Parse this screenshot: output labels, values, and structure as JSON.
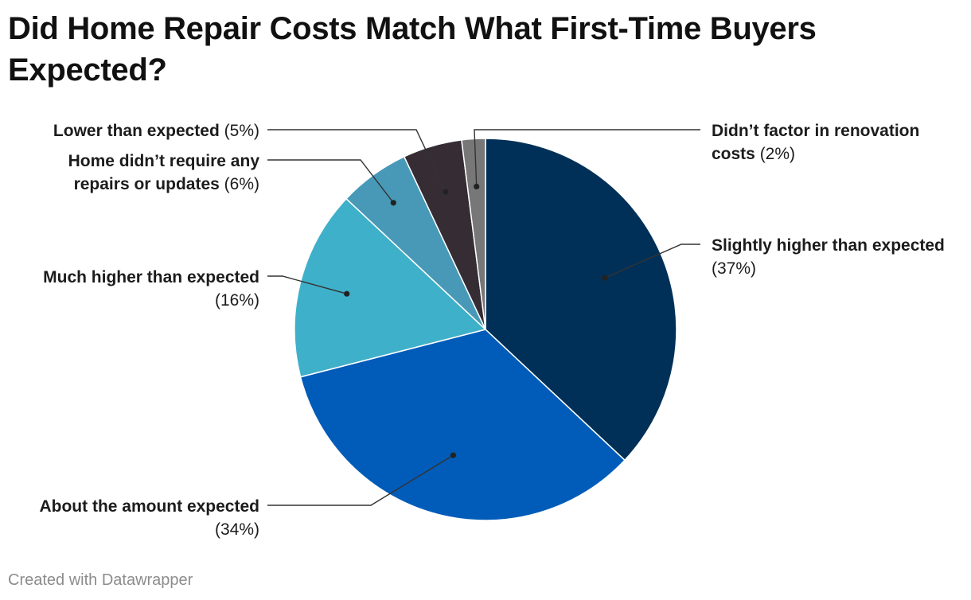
{
  "title": "Did Home Repair Costs Match What First-Time Buyers Expected?",
  "footer": "Created with Datawrapper",
  "chart_data": {
    "type": "pie",
    "title": "Did Home Repair Costs Match What First-Time Buyers Expected?",
    "slices": [
      {
        "label": "Slightly higher than expected",
        "value": 37,
        "display": "(37%)",
        "color": "#003057"
      },
      {
        "label": "About the amount expected",
        "value": 34,
        "display": "(34%)",
        "color": "#005cb8"
      },
      {
        "label": "Much higher than expected",
        "value": 16,
        "display": "(16%)",
        "color": "#3fb0c9"
      },
      {
        "label": "Home didn’t require any repairs or updates",
        "value": 6,
        "display": "(6%)",
        "color": "#4799b7"
      },
      {
        "label": "Lower than expected",
        "value": 5,
        "display": "(5%)",
        "color": "#352d33"
      },
      {
        "label": "Didn’t factor in renovation costs",
        "value": 2,
        "display": "(2%)",
        "color": "#777777"
      }
    ]
  }
}
